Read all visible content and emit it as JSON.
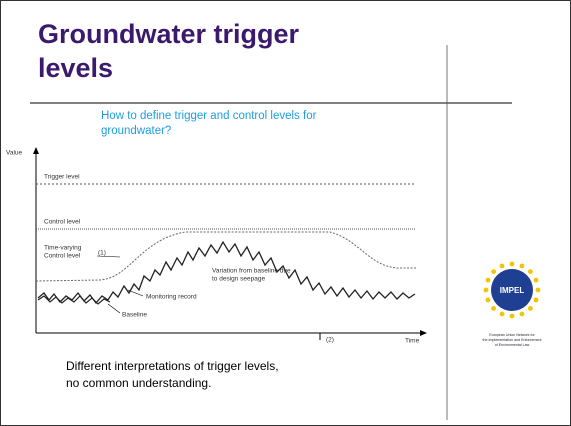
{
  "slide": {
    "title": [
      "Groundwater trigger",
      "levels"
    ],
    "subtitle": [
      "How to define trigger and control levels for",
      "groundwater?"
    ],
    "diagram": {
      "y_axis": "Value",
      "x_axis": "Time",
      "trigger": "Trigger level",
      "control": "Control level",
      "time_varying": [
        "Time-varying",
        "Control level"
      ],
      "marker_1": "(1)",
      "marker_2": "(2)",
      "variation": [
        "Variation from baseline due",
        "to design seepage"
      ],
      "monitoring": "Monitoring record",
      "baseline": "Baseline"
    },
    "logo": {
      "name": "IMPEL",
      "caption": [
        "European Union Network for",
        "the Implementation and Enforcement",
        "of Environmental Law"
      ]
    },
    "footer": [
      "Different interpretations of trigger levels,",
      "no common understanding."
    ]
  }
}
